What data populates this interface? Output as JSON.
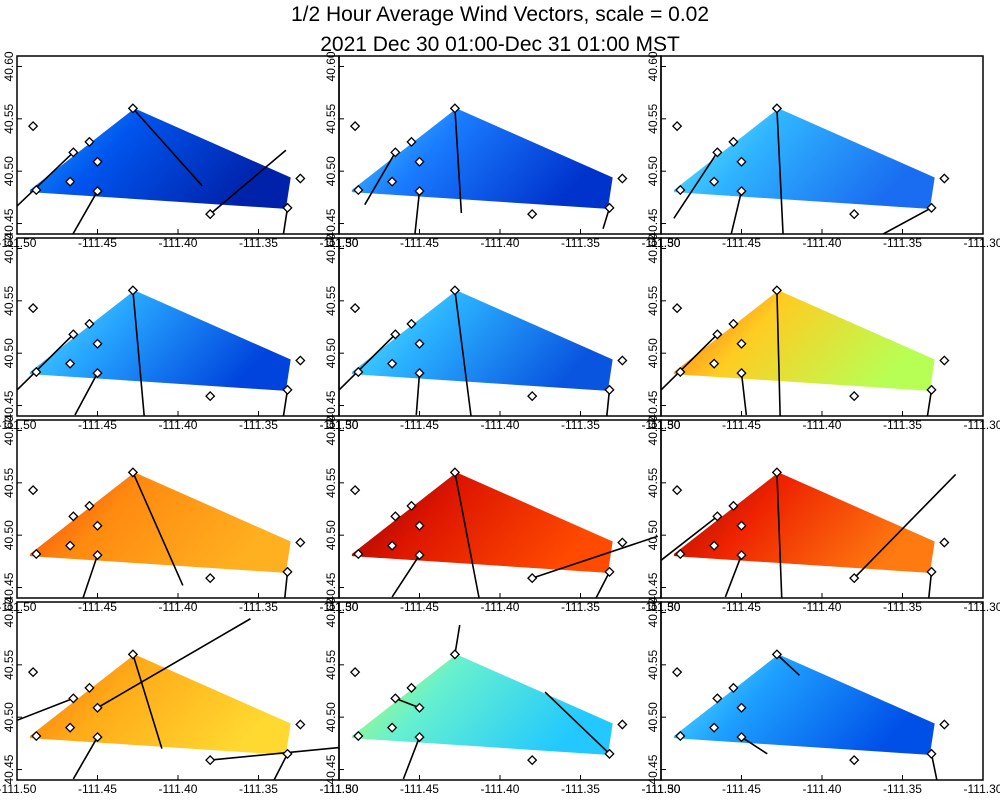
{
  "title": "1/2 Hour Average Wind Vectors, scale =  0.02",
  "subtitle": "2021 Dec 30 01:00-Dec 31 01:00 MST",
  "chart_data": {
    "type": "scatter",
    "grid": false,
    "xlim": [
      -111.5,
      -111.3
    ],
    "ylim": [
      40.44,
      40.61
    ],
    "x_ticks": [
      -111.5,
      -111.45,
      -111.4,
      -111.35,
      -111.3
    ],
    "x_tick_labels": [
      "-111.50",
      "-111.45",
      "-111.40",
      "-111.35",
      "-111.30"
    ],
    "y_ticks": [
      40.45,
      40.5,
      40.55,
      40.6
    ],
    "y_tick_labels": [
      "40.45",
      "40.50",
      "40.55",
      "40.60"
    ],
    "domain_polygon": [
      [
        -111.492,
        40.482
      ],
      [
        -111.427,
        40.56
      ],
      [
        -111.33,
        40.494
      ],
      [
        -111.333,
        40.464
      ],
      [
        -111.492,
        40.48
      ]
    ],
    "stations": [
      {
        "lon": -111.49,
        "lat": 40.543
      },
      {
        "lon": -111.488,
        "lat": 40.482
      },
      {
        "lon": -111.465,
        "lat": 40.518
      },
      {
        "lon": -111.467,
        "lat": 40.49
      },
      {
        "lon": -111.455,
        "lat": 40.528
      },
      {
        "lon": -111.45,
        "lat": 40.509
      },
      {
        "lon": -111.45,
        "lat": 40.481
      },
      {
        "lon": -111.428,
        "lat": 40.56
      },
      {
        "lon": -111.38,
        "lat": 40.459
      },
      {
        "lon": -111.332,
        "lat": 40.465
      },
      {
        "lon": -111.324,
        "lat": 40.493
      }
    ],
    "panels": [
      {
        "colors": [
          "#0055ee",
          "#0022aa",
          "#1fa8ff"
        ],
        "vectors": [
          {
            "lon": -111.428,
            "lat": 40.56,
            "dx": 0.043,
            "dy": -0.074
          },
          {
            "lon": -111.38,
            "lat": 40.459,
            "dx": 0.047,
            "dy": 0.061
          },
          {
            "lon": -111.465,
            "lat": 40.518,
            "dx": -0.045,
            "dy": -0.066
          },
          {
            "lon": -111.45,
            "lat": 40.481,
            "dx": -0.016,
            "dy": -0.043
          },
          {
            "lon": -111.332,
            "lat": 40.465,
            "dx": -0.003,
            "dy": -0.03
          }
        ]
      },
      {
        "colors": [
          "#1a7cff",
          "#0033cc",
          "#4bd2ff"
        ],
        "vectors": [
          {
            "lon": -111.428,
            "lat": 40.56,
            "dx": 0.004,
            "dy": -0.1
          },
          {
            "lon": -111.465,
            "lat": 40.518,
            "dx": -0.019,
            "dy": -0.05
          },
          {
            "lon": -111.45,
            "lat": 40.481,
            "dx": -0.004,
            "dy": -0.058
          },
          {
            "lon": -111.332,
            "lat": 40.465,
            "dx": -0.004,
            "dy": -0.02
          }
        ]
      },
      {
        "colors": [
          "#2fb4ff",
          "#1a6cf0",
          "#6af0ff"
        ],
        "vectors": [
          {
            "lon": -111.428,
            "lat": 40.56,
            "dx": 0.004,
            "dy": -0.126
          },
          {
            "lon": -111.465,
            "lat": 40.518,
            "dx": -0.027,
            "dy": -0.063
          },
          {
            "lon": -111.45,
            "lat": 40.481,
            "dx": -0.007,
            "dy": -0.045
          },
          {
            "lon": -111.332,
            "lat": 40.465,
            "dx": -0.03,
            "dy": -0.025
          }
        ]
      },
      {
        "colors": [
          "#26a4ff",
          "#0044dd",
          "#5be4ff"
        ],
        "vectors": [
          {
            "lon": -111.428,
            "lat": 40.56,
            "dx": 0.007,
            "dy": -0.12
          },
          {
            "lon": -111.465,
            "lat": 40.518,
            "dx": -0.05,
            "dy": -0.076
          },
          {
            "lon": -111.45,
            "lat": 40.481,
            "dx": -0.014,
            "dy": -0.04
          },
          {
            "lon": -111.332,
            "lat": 40.465,
            "dx": -0.003,
            "dy": -0.03
          }
        ]
      },
      {
        "colors": [
          "#2ab0ff",
          "#0a55e0",
          "#62ecff"
        ],
        "vectors": [
          {
            "lon": -111.428,
            "lat": 40.56,
            "dx": 0.01,
            "dy": -0.12
          },
          {
            "lon": -111.465,
            "lat": 40.518,
            "dx": -0.05,
            "dy": -0.076
          },
          {
            "lon": -111.45,
            "lat": 40.481,
            "dx": -0.002,
            "dy": -0.04
          },
          {
            "lon": -111.332,
            "lat": 40.465,
            "dx": -0.002,
            "dy": -0.03
          }
        ]
      },
      {
        "colors": [
          "#ffcc22",
          "#b8ff55",
          "#ff5a12"
        ],
        "vectors": [
          {
            "lon": -111.428,
            "lat": 40.56,
            "dx": 0.002,
            "dy": -0.12
          },
          {
            "lon": -111.465,
            "lat": 40.518,
            "dx": -0.05,
            "dy": -0.076
          },
          {
            "lon": -111.45,
            "lat": 40.481,
            "dx": 0.003,
            "dy": -0.04
          },
          {
            "lon": -111.332,
            "lat": 40.465,
            "dx": -0.003,
            "dy": -0.03
          }
        ]
      },
      {
        "colors": [
          "#ff8a10",
          "#ffb020",
          "#f03a08"
        ],
        "vectors": [
          {
            "lon": -111.428,
            "lat": 40.56,
            "dx": 0.031,
            "dy": -0.108
          },
          {
            "lon": -111.45,
            "lat": 40.481,
            "dx": -0.009,
            "dy": -0.041
          },
          {
            "lon": -111.332,
            "lat": 40.465,
            "dx": -0.002,
            "dy": -0.03
          }
        ]
      },
      {
        "colors": [
          "#dd1500",
          "#ff4a00",
          "#8a0000"
        ],
        "vectors": [
          {
            "lon": -111.428,
            "lat": 40.56,
            "dx": 0.015,
            "dy": -0.12
          },
          {
            "lon": -111.38,
            "lat": 40.459,
            "dx": 0.078,
            "dy": 0.04
          },
          {
            "lon": -111.45,
            "lat": 40.481,
            "dx": -0.017,
            "dy": -0.04
          },
          {
            "lon": -111.332,
            "lat": 40.465,
            "dx": -0.01,
            "dy": -0.03
          }
        ]
      },
      {
        "colors": [
          "#ee2200",
          "#ff7a10",
          "#9a0800"
        ],
        "vectors": [
          {
            "lon": -111.428,
            "lat": 40.56,
            "dx": 0.003,
            "dy": -0.12
          },
          {
            "lon": -111.38,
            "lat": 40.459,
            "dx": 0.063,
            "dy": 0.099
          },
          {
            "lon": -111.465,
            "lat": 40.518,
            "dx": -0.06,
            "dy": -0.072
          },
          {
            "lon": -111.45,
            "lat": 40.481,
            "dx": -0.01,
            "dy": -0.04
          },
          {
            "lon": -111.332,
            "lat": 40.465,
            "dx": -0.002,
            "dy": -0.03
          }
        ]
      },
      {
        "colors": [
          "#ffaa18",
          "#ffd830",
          "#ff6a0a"
        ],
        "vectors": [
          {
            "lon": -111.428,
            "lat": 40.56,
            "dx": 0.018,
            "dy": -0.09
          },
          {
            "lon": -111.45,
            "lat": 40.509,
            "dx": 0.095,
            "dy": 0.085
          },
          {
            "lon": -111.465,
            "lat": 40.518,
            "dx": -0.06,
            "dy": -0.036
          },
          {
            "lon": -111.38,
            "lat": 40.459,
            "dx": 0.08,
            "dy": 0.012
          },
          {
            "lon": -111.45,
            "lat": 40.481,
            "dx": -0.015,
            "dy": -0.04
          },
          {
            "lon": -111.332,
            "lat": 40.465,
            "dx": -0.01,
            "dy": -0.03
          }
        ]
      },
      {
        "colors": [
          "#66f0d0",
          "#22c8ff",
          "#c8ff50"
        ],
        "vectors": [
          {
            "lon": -111.428,
            "lat": 40.56,
            "dx": 0.003,
            "dy": 0.028
          },
          {
            "lon": -111.465,
            "lat": 40.518,
            "dx": 0.015,
            "dy": -0.009
          },
          {
            "lon": -111.332,
            "lat": 40.465,
            "dx": -0.04,
            "dy": 0.059
          },
          {
            "lon": -111.45,
            "lat": 40.481,
            "dx": -0.01,
            "dy": -0.04
          }
        ]
      },
      {
        "colors": [
          "#1ea0ff",
          "#0050e8",
          "#62f0ff"
        ],
        "vectors": [
          {
            "lon": -111.428,
            "lat": 40.56,
            "dx": 0.014,
            "dy": -0.02
          },
          {
            "lon": -111.45,
            "lat": 40.481,
            "dx": 0.016,
            "dy": -0.016
          },
          {
            "lon": -111.332,
            "lat": 40.465,
            "dx": 0.004,
            "dy": -0.03
          }
        ]
      }
    ]
  }
}
